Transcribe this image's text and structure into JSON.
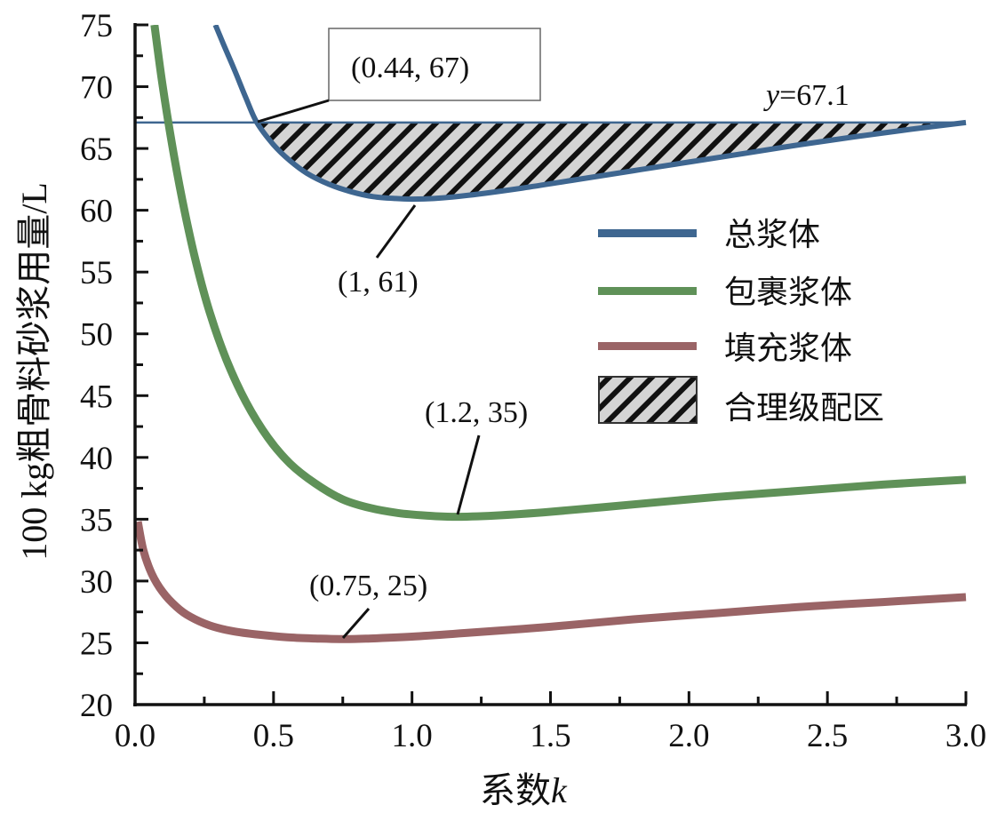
{
  "chart_data": {
    "type": "line",
    "title": "",
    "xlabel_prefix": "系数",
    "xlabel_var": "k",
    "ylabel": "100 kg粗骨料砂浆用量/L",
    "xlim": [
      0.0,
      3.0
    ],
    "ylim": [
      20,
      75
    ],
    "x_ticks": [
      "0.0",
      "0.5",
      "1.0",
      "1.5",
      "2.0",
      "2.5",
      "3.0"
    ],
    "x_tick_values": [
      0.0,
      0.5,
      1.0,
      1.5,
      2.0,
      2.5,
      3.0
    ],
    "x_minor_step": 0.25,
    "y_ticks": [
      "20",
      "25",
      "30",
      "35",
      "40",
      "45",
      "50",
      "55",
      "60",
      "65",
      "70",
      "75"
    ],
    "y_tick_values": [
      20,
      25,
      30,
      35,
      40,
      45,
      50,
      55,
      60,
      65,
      70,
      75
    ],
    "y_minor_step": 2.5,
    "grid": false,
    "legend_position": "right",
    "series": [
      {
        "name": "总浆体",
        "color": "#3e6690",
        "x": [
          0.29,
          0.32,
          0.36,
          0.4,
          0.44,
          0.5,
          0.56,
          0.62,
          0.7,
          0.78,
          0.86,
          0.94,
          1.0,
          1.08,
          1.2,
          1.4,
          1.6,
          1.8,
          2.0,
          2.2,
          2.4,
          2.6,
          2.8,
          3.0
        ],
        "values": [
          75.0,
          73.4,
          71.3,
          69.1,
          67.1,
          65.3,
          64.0,
          63.0,
          62.1,
          61.5,
          61.1,
          60.95,
          60.9,
          60.95,
          61.2,
          61.8,
          62.5,
          63.2,
          63.9,
          64.6,
          65.3,
          65.95,
          66.55,
          67.1
        ]
      },
      {
        "name": "包裹浆体",
        "color": "#5f9158",
        "x": [
          0.07,
          0.1,
          0.14,
          0.18,
          0.22,
          0.27,
          0.33,
          0.4,
          0.48,
          0.56,
          0.65,
          0.75,
          0.85,
          0.95,
          1.05,
          1.15,
          1.3,
          1.5,
          1.8,
          2.1,
          2.4,
          2.7,
          3.0
        ],
        "values": [
          75.0,
          70.0,
          64.5,
          59.8,
          55.8,
          51.7,
          47.9,
          44.5,
          41.6,
          39.5,
          37.9,
          36.6,
          35.9,
          35.5,
          35.3,
          35.2,
          35.3,
          35.6,
          36.2,
          36.8,
          37.3,
          37.8,
          38.2
        ]
      },
      {
        "name": "填充浆体",
        "color": "#9a6466",
        "x": [
          0.01,
          0.03,
          0.06,
          0.1,
          0.15,
          0.2,
          0.27,
          0.35,
          0.45,
          0.55,
          0.65,
          0.75,
          0.85,
          1.0,
          1.2,
          1.5,
          1.8,
          2.1,
          2.4,
          2.7,
          3.0
        ],
        "values": [
          34.8,
          32.5,
          30.6,
          29.1,
          27.9,
          27.1,
          26.4,
          25.95,
          25.65,
          25.45,
          25.35,
          25.3,
          25.35,
          25.5,
          25.8,
          26.3,
          26.9,
          27.4,
          27.9,
          28.3,
          28.7
        ]
      }
    ],
    "hline": {
      "y": 67.1,
      "label_var": "y",
      "label_value": "=67.1",
      "color": "#3e6690"
    },
    "shaded_region": {
      "name": "合理级配区",
      "between": "总浆体 and y=67.1",
      "x_range": [
        0.44,
        3.0
      ],
      "fill": "#d4d4d4",
      "hatch": "#111111"
    },
    "annotations": [
      {
        "text": "(0.44, 67)",
        "x": 0.44,
        "y": 67.1,
        "boxed": true
      },
      {
        "text": "(1, 61)",
        "x": 1.0,
        "y": 60.9,
        "boxed": false
      },
      {
        "text": "(1.2, 35)",
        "x": 1.15,
        "y": 35.2,
        "boxed": false
      },
      {
        "text": "(0.75, 25)",
        "x": 0.75,
        "y": 25.3,
        "boxed": false
      }
    ],
    "legend": [
      {
        "label": "总浆体",
        "kind": "line",
        "color": "#3e6690"
      },
      {
        "label": "包裹浆体",
        "kind": "line",
        "color": "#5f9158"
      },
      {
        "label": "填充浆体",
        "kind": "line",
        "color": "#9a6466"
      },
      {
        "label": "合理级配区",
        "kind": "hatch",
        "color": "#d4d4d4"
      }
    ]
  }
}
